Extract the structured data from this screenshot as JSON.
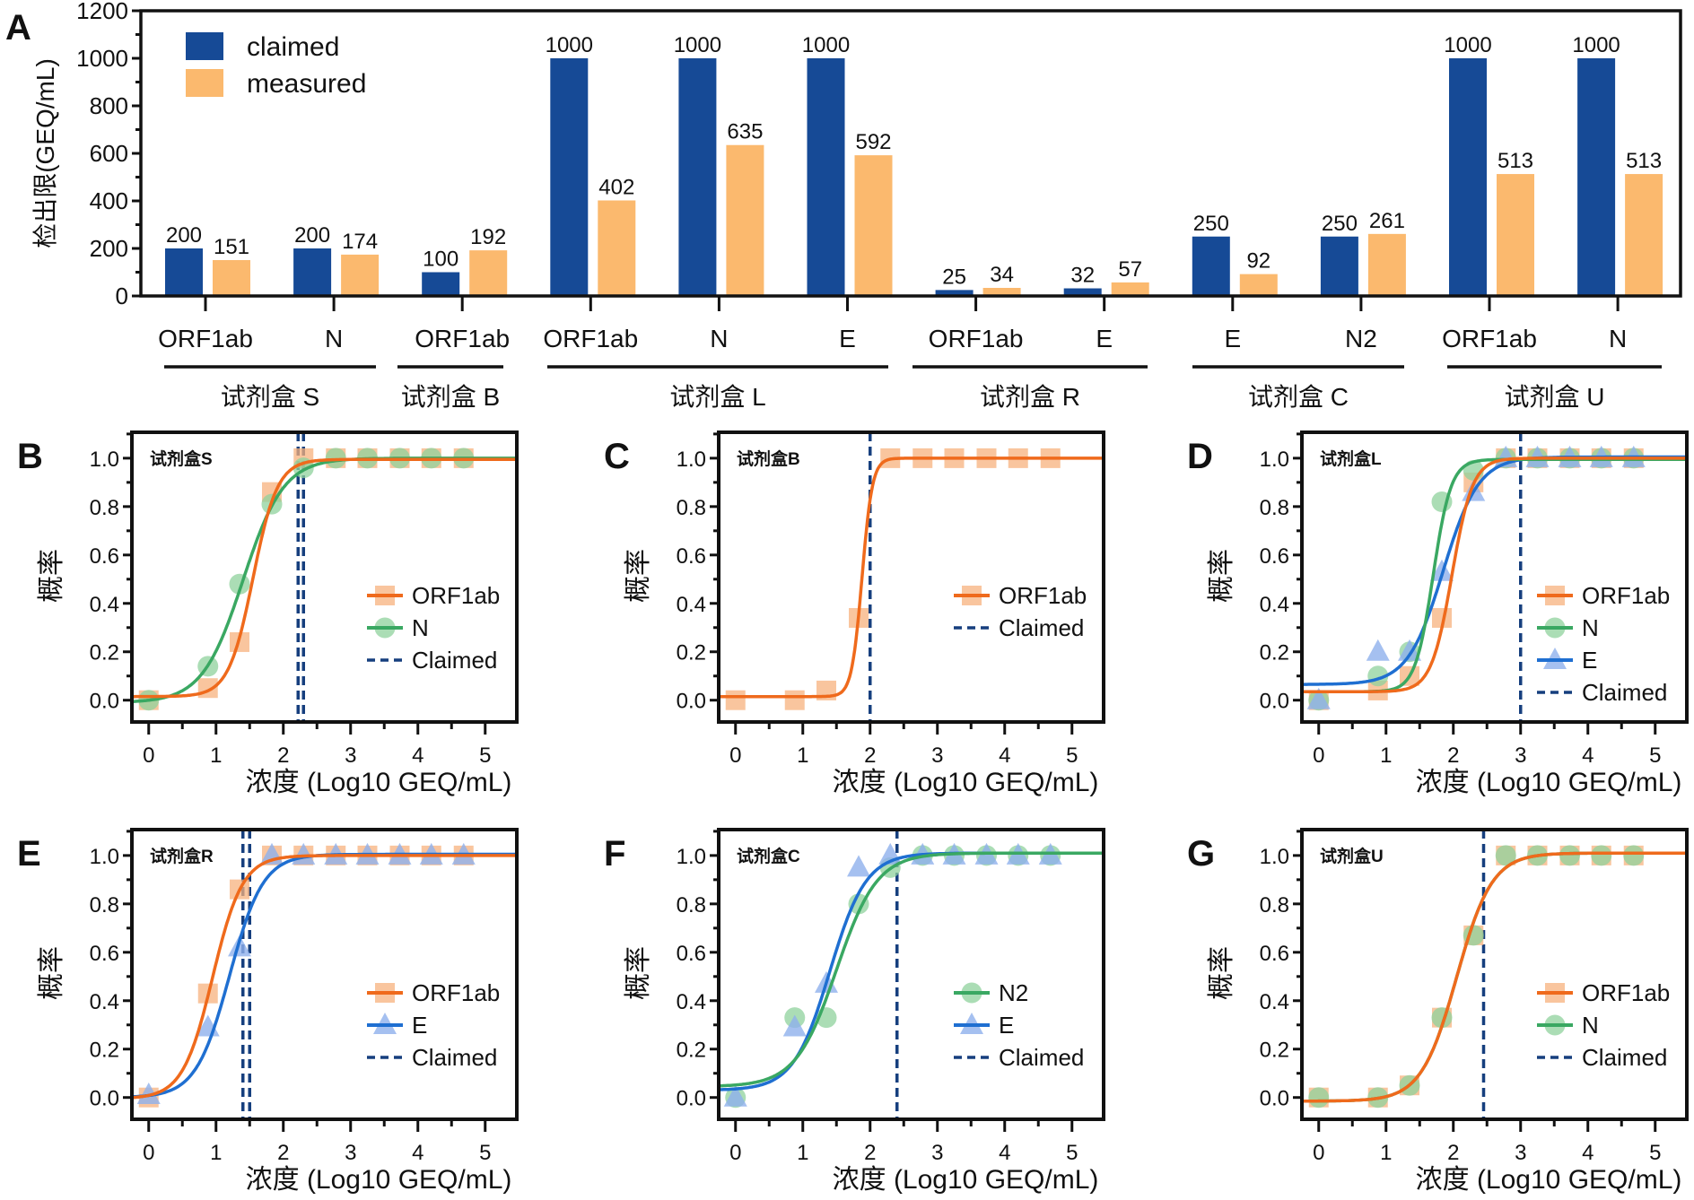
{
  "colors": {
    "claimed": "#164a96",
    "measured": "#fbb96e",
    "ORF1ab_line": "#ef6a1c",
    "ORF1ab_marker": "#f7b27e",
    "N_line": "#3aa862",
    "N_marker": "#8fd19c",
    "E_line": "#1f6fd1",
    "E_marker": "#8fb0ec",
    "claimed_dash": "#163f7e"
  },
  "chart_data": [
    {
      "panel": "A",
      "type": "bar",
      "ylabel": "检出限(GEQ/mL)",
      "ylim": [
        0,
        1200
      ],
      "yticks": [
        "0",
        "200",
        "400",
        "600",
        "800",
        "1000",
        "1200"
      ],
      "legend": {
        "position": "top-left",
        "entries": [
          "claimed",
          "measured"
        ]
      },
      "categories": [
        "ORF1ab",
        "N",
        "ORF1ab",
        "ORF1ab",
        "N",
        "E",
        "ORF1ab",
        "E",
        "E",
        "N2",
        "ORF1ab",
        "N"
      ],
      "groups": [
        {
          "label": "试剂盒 S",
          "span": [
            0,
            1
          ]
        },
        {
          "label": "试剂盒 B",
          "span": [
            2,
            2
          ]
        },
        {
          "label": "试剂盒 L",
          "span": [
            3,
            5
          ]
        },
        {
          "label": "试剂盒 R",
          "span": [
            6,
            7
          ]
        },
        {
          "label": "试剂盒 C",
          "span": [
            8,
            9
          ]
        },
        {
          "label": "试剂盒 U",
          "span": [
            10,
            11
          ]
        }
      ],
      "series": [
        {
          "name": "claimed",
          "values": [
            200,
            200,
            100,
            1000,
            1000,
            1000,
            25,
            32,
            250,
            250,
            1000,
            1000
          ],
          "labels": [
            "200",
            "200",
            "100",
            "1000",
            "1000",
            "1000",
            "25",
            "32",
            "250",
            "250",
            "1000",
            "1000"
          ]
        },
        {
          "name": "measured",
          "values": [
            151,
            174,
            192,
            402,
            635,
            592,
            34,
            57,
            92,
            261,
            513,
            513
          ],
          "labels": [
            "151",
            "174",
            "192",
            "402",
            "635",
            "592",
            "34",
            "57",
            "92",
            "261",
            "513",
            "513"
          ]
        }
      ]
    },
    {
      "panel": "B",
      "type": "scatter",
      "kit": "试剂盒S",
      "xlabel": "浓度 (Log10 GEQ/mL)",
      "ylabel": "概率",
      "xlim": [
        -0.25,
        5.47
      ],
      "ylim": [
        -0.09,
        1.107
      ],
      "xticks": [
        "0",
        "1",
        "2",
        "3",
        "4",
        "5"
      ],
      "yticks": [
        "0.0",
        "0.2",
        "0.4",
        "0.6",
        "0.8",
        "1.0"
      ],
      "legend": {
        "position": "right",
        "entries": [
          "ORF1ab",
          "N",
          "Claimed"
        ]
      },
      "series": [
        {
          "name": "ORF1ab",
          "marker": "square",
          "x": [
            0,
            0.88,
            1.35,
            1.83,
            2.3,
            2.78,
            3.25,
            3.73,
            4.2,
            4.68
          ],
          "y": [
            0,
            0.05,
            0.24,
            0.86,
            1,
            1,
            1,
            1,
            1,
            1
          ],
          "fit": {
            "bottom": 0.015,
            "top": 0.995,
            "x50": 1.55,
            "slope": 5.5
          }
        },
        {
          "name": "N",
          "marker": "circle",
          "x": [
            0,
            0.88,
            1.35,
            1.83,
            2.3,
            2.78,
            3.25,
            3.73,
            4.2,
            4.68
          ],
          "y": [
            0,
            0.14,
            0.48,
            0.81,
            0.96,
            1,
            1,
            1,
            1,
            1
          ],
          "fit": {
            "bottom": -0.01,
            "top": 1.0,
            "x50": 1.4,
            "slope": 3.3
          }
        }
      ],
      "claimed_x": [
        2.22,
        2.3
      ]
    },
    {
      "panel": "C",
      "type": "scatter",
      "kit": "试剂盒B",
      "xlabel": "浓度 (Log10 GEQ/mL)",
      "ylabel": "概率",
      "xlim": [
        -0.25,
        5.47
      ],
      "ylim": [
        -0.09,
        1.107
      ],
      "xticks": [
        "0",
        "1",
        "2",
        "3",
        "4",
        "5"
      ],
      "yticks": [
        "0.0",
        "0.2",
        "0.4",
        "0.6",
        "0.8",
        "1.0"
      ],
      "legend": {
        "position": "right",
        "entries": [
          "ORF1ab",
          "Claimed"
        ]
      },
      "series": [
        {
          "name": "ORF1ab",
          "marker": "square",
          "x": [
            0,
            0.88,
            1.35,
            1.83,
            2.3,
            2.78,
            3.25,
            3.73,
            4.2,
            4.68
          ],
          "y": [
            0,
            0,
            0.04,
            0.34,
            1,
            1,
            1,
            1,
            1,
            1
          ],
          "fit": {
            "bottom": 0.015,
            "top": 1.0,
            "x50": 1.88,
            "slope": 13
          }
        }
      ],
      "claimed_x": [
        2.0
      ]
    },
    {
      "panel": "D",
      "type": "scatter",
      "kit": "试剂盒L",
      "xlabel": "浓度 (Log10 GEQ/mL)",
      "ylabel": "概率",
      "xlim": [
        -0.25,
        5.47
      ],
      "ylim": [
        -0.09,
        1.107
      ],
      "xticks": [
        "0",
        "1",
        "2",
        "3",
        "4",
        "5"
      ],
      "yticks": [
        "0.0",
        "0.2",
        "0.4",
        "0.6",
        "0.8",
        "1.0"
      ],
      "legend": {
        "position": "right",
        "entries": [
          "ORF1ab",
          "N",
          "E",
          "Claimed"
        ]
      },
      "series": [
        {
          "name": "ORF1ab",
          "marker": "square",
          "x": [
            0,
            0.88,
            1.35,
            1.83,
            2.3,
            2.78,
            3.25,
            3.73,
            4.2,
            4.68
          ],
          "y": [
            0,
            0.04,
            0.1,
            0.34,
            0.9,
            1,
            1,
            1,
            1,
            1
          ],
          "fit": {
            "bottom": 0.035,
            "top": 1.0,
            "x50": 1.98,
            "slope": 6.5
          }
        },
        {
          "name": "N",
          "marker": "circle",
          "x": [
            0,
            0.88,
            1.35,
            1.83,
            2.3,
            2.78,
            3.25,
            3.73,
            4.2,
            4.68
          ],
          "y": [
            0,
            0.1,
            0.2,
            0.82,
            0.95,
            1,
            1,
            1,
            1,
            1
          ],
          "fit": {
            "bottom": 0.035,
            "top": 0.995,
            "x50": 1.7,
            "slope": 7.5
          }
        },
        {
          "name": "E",
          "marker": "triangle",
          "x": [
            0,
            0.88,
            1.35,
            1.83,
            2.3,
            2.78,
            3.25,
            3.73,
            4.2,
            4.68
          ],
          "y": [
            0,
            0.2,
            0.2,
            0.53,
            0.86,
            1,
            1,
            1,
            1,
            1
          ],
          "fit": {
            "bottom": 0.065,
            "top": 1.005,
            "x50": 1.85,
            "slope": 3.8
          }
        }
      ],
      "claimed_x": [
        3.0
      ]
    },
    {
      "panel": "E",
      "type": "scatter",
      "kit": "试剂盒R",
      "xlabel": "浓度 (Log10 GEQ/mL)",
      "ylabel": "概率",
      "xlim": [
        -0.25,
        5.47
      ],
      "ylim": [
        -0.09,
        1.107
      ],
      "xticks": [
        "0",
        "1",
        "2",
        "3",
        "4",
        "5"
      ],
      "yticks": [
        "0.0",
        "0.2",
        "0.4",
        "0.6",
        "0.8",
        "1.0"
      ],
      "legend": {
        "position": "right",
        "entries": [
          "ORF1ab",
          "E",
          "Claimed"
        ]
      },
      "series": [
        {
          "name": "ORF1ab",
          "marker": "square",
          "x": [
            0,
            0.88,
            1.35,
            1.83,
            2.3,
            2.78,
            3.25,
            3.73,
            4.2,
            4.68
          ],
          "y": [
            0,
            0.43,
            0.86,
            1,
            1,
            1,
            1,
            1,
            1,
            1
          ],
          "fit": {
            "bottom": -0.005,
            "top": 1.0,
            "x50": 0.95,
            "slope": 4.5
          }
        },
        {
          "name": "E",
          "marker": "triangle",
          "x": [
            0,
            0.88,
            1.35,
            1.83,
            2.3,
            2.78,
            3.25,
            3.73,
            4.2,
            4.68
          ],
          "y": [
            0.01,
            0.29,
            0.62,
            1,
            1,
            1,
            1,
            1,
            1,
            1
          ],
          "fit": {
            "bottom": 0.0,
            "top": 1.005,
            "x50": 1.2,
            "slope": 4.0
          }
        }
      ],
      "claimed_x": [
        1.4,
        1.5
      ]
    },
    {
      "panel": "F",
      "type": "scatter",
      "kit": "试剂盒C",
      "xlabel": "浓度 (Log10 GEQ/mL)",
      "ylabel": "概率",
      "xlim": [
        -0.25,
        5.47
      ],
      "ylim": [
        -0.09,
        1.107
      ],
      "xticks": [
        "0",
        "1",
        "2",
        "3",
        "4",
        "5"
      ],
      "yticks": [
        "0.0",
        "0.2",
        "0.4",
        "0.6",
        "0.8",
        "1.0"
      ],
      "legend": {
        "position": "right",
        "entries": [
          "N2",
          "E",
          "Claimed"
        ]
      },
      "series": [
        {
          "name": "N2",
          "marker": "circle",
          "color_key": "N",
          "x": [
            0,
            0.88,
            1.35,
            1.83,
            2.3,
            2.78,
            3.25,
            3.73,
            4.2,
            4.68
          ],
          "y": [
            0,
            0.33,
            0.33,
            0.8,
            0.95,
            1,
            1,
            1,
            1,
            1
          ],
          "fit": {
            "bottom": 0.045,
            "top": 1.01,
            "x50": 1.5,
            "slope": 3.3
          }
        },
        {
          "name": "E",
          "marker": "triangle",
          "x": [
            0,
            0.88,
            1.35,
            1.83,
            2.3,
            2.78,
            3.25,
            3.73,
            4.2,
            4.68
          ],
          "y": [
            0,
            0.29,
            0.47,
            0.95,
            1,
            1,
            1,
            1,
            1,
            1
          ],
          "fit": {
            "bottom": 0.03,
            "top": 1.01,
            "x50": 1.4,
            "slope": 3.7
          }
        }
      ],
      "claimed_x": [
        2.4
      ]
    },
    {
      "panel": "G",
      "type": "scatter",
      "kit": "试剂盒U",
      "xlabel": "浓度 (Log10 GEQ/mL)",
      "ylabel": "概率",
      "xlim": [
        -0.25,
        5.47
      ],
      "ylim": [
        -0.09,
        1.107
      ],
      "xticks": [
        "0",
        "1",
        "2",
        "3",
        "4",
        "5"
      ],
      "yticks": [
        "0.0",
        "0.2",
        "0.4",
        "0.6",
        "0.8",
        "1.0"
      ],
      "legend": {
        "position": "right",
        "entries": [
          "ORF1ab",
          "N",
          "Claimed"
        ]
      },
      "series": [
        {
          "name": "ORF1ab",
          "marker": "square",
          "x": [
            0,
            0.88,
            1.35,
            1.83,
            2.3,
            2.78,
            3.25,
            3.73,
            4.2,
            4.68
          ],
          "y": [
            0,
            0,
            0.05,
            0.33,
            0.67,
            1,
            1,
            1,
            1,
            1
          ],
          "fit": {
            "bottom": -0.015,
            "top": 1.01,
            "x50": 2.05,
            "slope": 3.8
          }
        },
        {
          "name": "N",
          "marker": "circle",
          "x": [
            0,
            0.88,
            1.35,
            1.83,
            2.3,
            2.78,
            3.25,
            3.73,
            4.2,
            4.68
          ],
          "y": [
            0,
            0,
            0.05,
            0.33,
            0.67,
            1,
            1,
            1,
            1,
            1
          ],
          "fit": {
            "bottom": -0.015,
            "top": 1.01,
            "x50": 2.05,
            "slope": 3.8
          }
        }
      ],
      "claimed_x": [
        2.45
      ]
    }
  ]
}
